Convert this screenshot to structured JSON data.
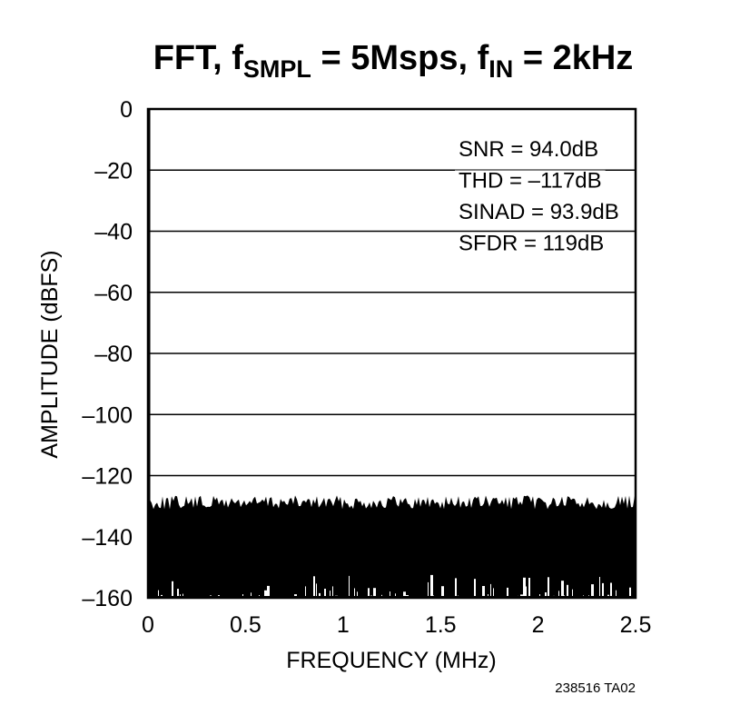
{
  "chart_data": {
    "type": "line",
    "title": {
      "p1": "FFT, f",
      "sub1": "SMPL",
      "p2": " = 5Msps, f",
      "sub2": "IN",
      "p3": " = 2kHz"
    },
    "xlabel": "FREQUENCY (MHz)",
    "ylabel": "AMPLITUDE (dBFS)",
    "xlim": [
      0,
      2.5
    ],
    "ylim": [
      -160,
      0
    ],
    "xticks": [
      0,
      0.5,
      1,
      1.5,
      2,
      2.5
    ],
    "xtick_labels": [
      "0",
      "0.5",
      "1",
      "1.5",
      "2",
      "2.5"
    ],
    "yticks": [
      0,
      -20,
      -40,
      -60,
      -80,
      -100,
      -120,
      -140,
      -160
    ],
    "ytick_labels": [
      "0",
      "–20",
      "–40",
      "–60",
      "–80",
      "–100",
      "–120",
      "–140",
      "–160"
    ],
    "grid": "horizontal",
    "annotations": [
      "SNR = 94.0dB",
      "THD = –117dB",
      "SINAD = 93.9dB",
      "SFDR = 119dB"
    ],
    "fundamental": {
      "frequency_mhz": 0.002,
      "amplitude_dbfs": 0
    },
    "noise_floor": {
      "upper_envelope_dbfs": -128,
      "lower_envelope_dbfs": -158
    },
    "series": [
      {
        "frequency_mhz": [
          0,
          2.5
        ],
        "amplitude_dbfs": [
          -128,
          -128
        ]
      }
    ]
  },
  "figure_id": "238516 TA02"
}
